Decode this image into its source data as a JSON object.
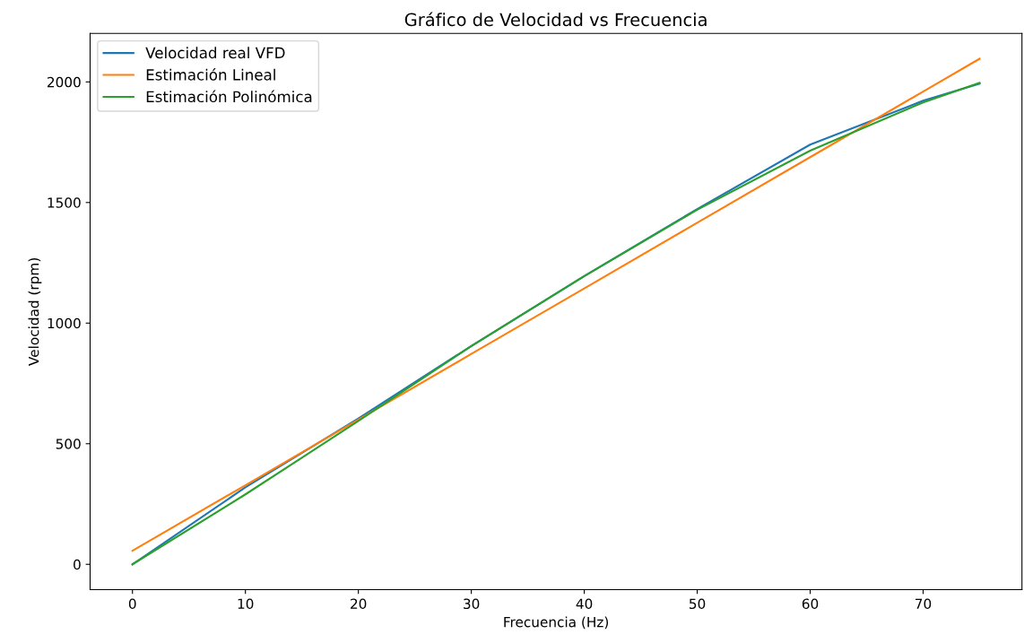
{
  "chart_data": {
    "type": "line",
    "title": "Gráfico de Velocidad vs Frecuencia",
    "xlabel": "Frecuencia (Hz)",
    "ylabel": "Velocidad (rpm)",
    "x": [
      0,
      10,
      20,
      30,
      40,
      50,
      60,
      70,
      75
    ],
    "series": [
      {
        "name": "Velocidad real VFD",
        "color": "#1f77b4",
        "values": [
          0,
          319,
          605,
          905,
          1195,
          1473,
          1740,
          1922,
          1993
        ]
      },
      {
        "name": "Estimación Lineal",
        "color": "#ff7f0e",
        "values": [
          56,
          328,
          600,
          872,
          1144,
          1416,
          1688,
          1960,
          2096
        ]
      },
      {
        "name": "Estimación Polinómica",
        "color": "#2ca02c",
        "values": [
          0,
          290,
          594,
          905,
          1195,
          1470,
          1715,
          1915,
          1996
        ]
      }
    ],
    "xlim": [
      -3.75,
      78.75
    ],
    "ylim": [
      -105,
      2201
    ],
    "xticks": [
      0,
      10,
      20,
      30,
      40,
      50,
      60,
      70
    ],
    "yticks": [
      0,
      500,
      1000,
      1500,
      2000
    ],
    "legend": "top left",
    "grid": false,
    "marker": "none",
    "line_style": "solid"
  }
}
